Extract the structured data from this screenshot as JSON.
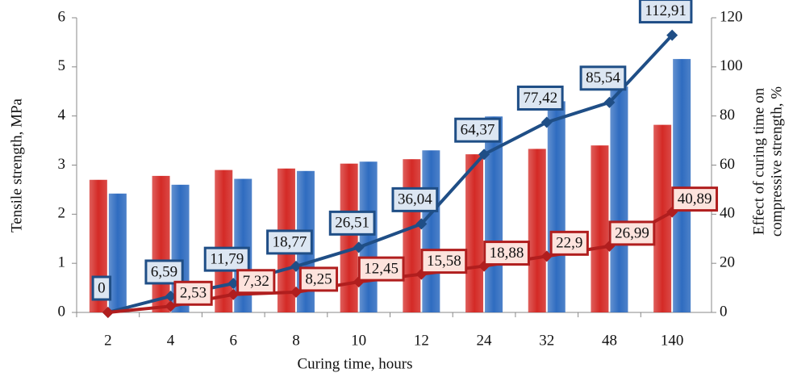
{
  "chart_data": {
    "type": "bar_line",
    "categories": [
      "2",
      "4",
      "6",
      "8",
      "10",
      "12",
      "24",
      "32",
      "48",
      "140"
    ],
    "x_label": "Curing time, hours",
    "y_label": "Tensile strength, MPa",
    "y2_label": [
      "Effect  of curing time on",
      "compressive strength, %"
    ],
    "ylim": [
      0,
      6
    ],
    "yticks": [
      0,
      1,
      2,
      3,
      4,
      5,
      6
    ],
    "y2lim": [
      0,
      120
    ],
    "y2ticks": [
      0,
      20,
      40,
      60,
      80,
      100,
      120
    ],
    "bars": [
      {
        "color": "#d42a26",
        "values": [
          2.7,
          2.78,
          2.9,
          2.93,
          3.03,
          3.12,
          3.22,
          3.33,
          3.4,
          3.82
        ]
      },
      {
        "color": "#2f6cc0",
        "values": [
          2.42,
          2.6,
          2.72,
          2.88,
          3.07,
          3.3,
          3.99,
          4.3,
          4.6,
          5.16
        ]
      }
    ],
    "lines": [
      {
        "color": "#1f4e86",
        "axis": "y2",
        "label_fill": "#dce6f2",
        "values": [
          0,
          6.59,
          11.79,
          18.77,
          26.51,
          36.04,
          64.37,
          77.42,
          85.54,
          112.91
        ],
        "value_labels": [
          "0",
          "6,59",
          "11,79",
          "18,77",
          "26,51",
          "36,04",
          "64,37",
          "77,42",
          "85,54",
          "112,91"
        ]
      },
      {
        "color": "#b01e1e",
        "axis": "y2",
        "label_fill": "#fde3dd",
        "values": [
          0,
          2.53,
          7.32,
          8.25,
          12.45,
          15.58,
          18.88,
          22.9,
          26.99,
          40.89
        ],
        "value_labels": [
          null,
          "2,53",
          "7,32",
          "8,25",
          "12,45",
          "15,58",
          "18,88",
          "22,9",
          "26,99",
          "40,89"
        ]
      }
    ]
  }
}
